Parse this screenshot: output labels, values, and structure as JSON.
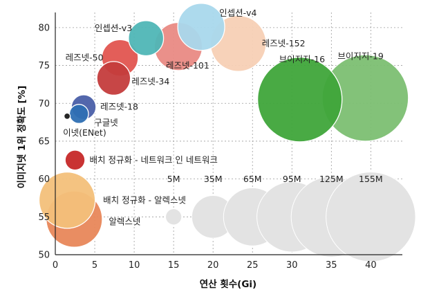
{
  "chart_data": {
    "type": "scatter",
    "xlabel": "연산 횟수(Gi)",
    "ylabel": "이미지넷 1위 정확도 [%]",
    "xlim": [
      0,
      44
    ],
    "ylim": [
      50,
      82
    ],
    "xticks": [
      "0",
      "5",
      "10",
      "15",
      "20",
      "25",
      "30",
      "35",
      "40"
    ],
    "yticks": [
      "50",
      "55",
      "60",
      "65",
      "70",
      "75",
      "80"
    ],
    "grid": true,
    "points": [
      {
        "label": "알렉스넷",
        "x": 2.4,
        "y": 54.7,
        "params": 61,
        "color": "#e8875a",
        "label_dx": 50,
        "label_dy": 8,
        "anchor": "start"
      },
      {
        "label": "배치 정규화 - 알렉스넷",
        "x": 1.5,
        "y": 57.2,
        "params": 61,
        "color": "#f3c07a",
        "label_dx": 52,
        "label_dy": 4,
        "anchor": "start"
      },
      {
        "label": "배치 정규화 - 네트워크 인 네트워크",
        "x": 2.5,
        "y": 62.5,
        "params": 7.6,
        "color": "#c62828",
        "label_dx": 21,
        "label_dy": 4,
        "anchor": "start"
      },
      {
        "label": "이넷(ENet)",
        "x": 1.5,
        "y": 68.3,
        "params": 0.4,
        "color": "#1a1a1a",
        "label_dx": -6,
        "label_dy": 28,
        "anchor": "start"
      },
      {
        "label": "구글넷",
        "x": 3.0,
        "y": 68.6,
        "params": 7,
        "color": "#2e6fb3",
        "label_dx": 22,
        "label_dy": 17,
        "anchor": "start"
      },
      {
        "label": "레즈넷-18",
        "x": 3.6,
        "y": 69.5,
        "params": 11.7,
        "color": "#4a5fa8",
        "label_dx": 24,
        "label_dy": 4,
        "anchor": "start"
      },
      {
        "label": "레즈넷-34",
        "x": 7.4,
        "y": 73.3,
        "params": 21.8,
        "color": "#c43c3c",
        "label_dx": 26,
        "label_dy": 9,
        "anchor": "start"
      },
      {
        "label": "레즈넷-50",
        "x": 8.2,
        "y": 76.0,
        "params": 25.6,
        "color": "#e25550",
        "label_dx": -24,
        "label_dy": 4,
        "anchor": "end"
      },
      {
        "label": "인셉션-v3",
        "x": 11.5,
        "y": 78.6,
        "params": 23.8,
        "color": "#4fb6b6",
        "label_dx": -20,
        "label_dy": -10,
        "anchor": "end"
      },
      {
        "label": "레즈넷-101",
        "x": 15.6,
        "y": 77.5,
        "params": 44.5,
        "color": "#e98a84",
        "label_dx": -18,
        "label_dy": 32,
        "anchor": "start"
      },
      {
        "label": "인셉션-v4",
        "x": 18.5,
        "y": 80.1,
        "params": 42.7,
        "color": "#a9d8ec",
        "label_dx": 26,
        "label_dy": -16,
        "anchor": "start"
      },
      {
        "label": "레즈넷-152",
        "x": 23.2,
        "y": 77.9,
        "params": 60.2,
        "color": "#f7d0b5",
        "label_dx": 34,
        "label_dy": 4,
        "anchor": "start"
      },
      {
        "label": "브이지지-16",
        "x": 31.0,
        "y": 70.5,
        "params": 138,
        "color": "#3fa53a",
        "label_dx": -30,
        "label_dy": -54,
        "anchor": "start"
      },
      {
        "label": "브이지지-19",
        "x": 39.3,
        "y": 70.7,
        "params": 144,
        "color": "#7cbf72",
        "label_dx": -40,
        "label_dy": -56,
        "anchor": "start"
      }
    ],
    "size_legend": {
      "y": 55,
      "color": "#e3e3e3",
      "items": [
        {
          "label": "5M",
          "x": 15,
          "params": 5
        },
        {
          "label": "35M",
          "x": 20,
          "params": 35
        },
        {
          "label": "65M",
          "x": 25,
          "params": 65
        },
        {
          "label": "95M",
          "x": 30,
          "params": 95
        },
        {
          "label": "125M",
          "x": 35,
          "params": 125
        },
        {
          "label": "155M",
          "x": 40,
          "params": 155
        }
      ]
    }
  }
}
